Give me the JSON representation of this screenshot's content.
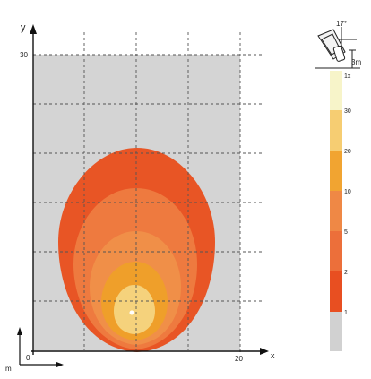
{
  "plot": {
    "x_axis_label": "x",
    "y_axis_label": "y",
    "x_max_label": "20",
    "y_max_label": "30",
    "origin_label": "0",
    "unit_label": "m"
  },
  "fixture": {
    "tilt_label": "17°",
    "height_label": "3m"
  },
  "legend": {
    "levels": [
      "1x",
      "30",
      "20",
      "10",
      "5",
      "2",
      "1"
    ],
    "colors": [
      "#f7f4c9",
      "#f6cd72",
      "#f1a431",
      "#ef8845",
      "#ec6f3a",
      "#e84f21",
      "#d1d1d1"
    ]
  },
  "contour_colors": [
    "#e85525",
    "#ee7a3f",
    "#f08f48",
    "#ef9f2a",
    "#f5d27c",
    "#ffffff"
  ]
}
